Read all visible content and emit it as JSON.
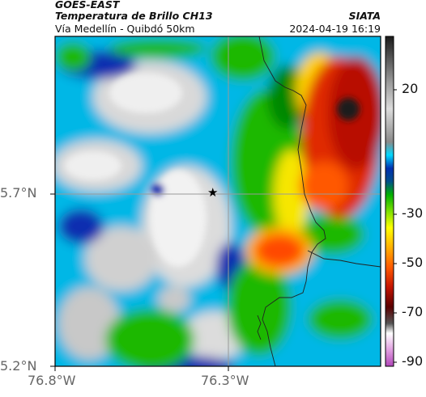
{
  "header": {
    "satellite": "GOES-EAST",
    "product": "Temperatura de Brillo CH13",
    "region": "Vía Medellín - Quibdó 50km",
    "organization": "SIATA",
    "timestamp": "2024-04-19 16:19"
  },
  "axes": {
    "lat_labels": [
      "5.7°N",
      "5.2°N"
    ],
    "lon_labels": [
      "76.8°W",
      "76.3°W"
    ]
  },
  "colorbar": {
    "ticks": [
      "20",
      "-30",
      "-50",
      "-70",
      "-90"
    ]
  },
  "colors": {
    "clear": "#2a2a2a",
    "cold_cloud": "#00bde8",
    "deep_convection": "#c41400",
    "top": "#dcdcdc"
  },
  "marker": {
    "symbol": "★"
  }
}
